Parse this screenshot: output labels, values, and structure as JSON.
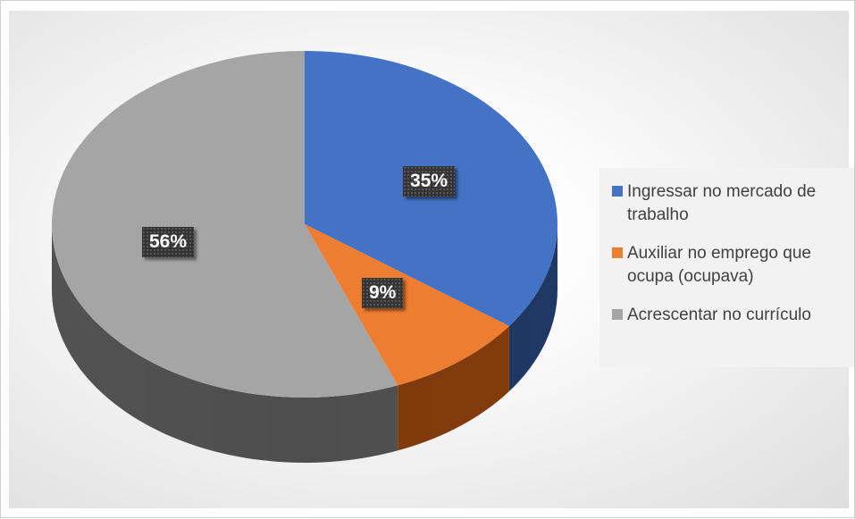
{
  "chart_data": {
    "type": "pie",
    "title": "",
    "categories": [
      "Ingressar no mercado de trabalho",
      "Auxiliar no emprego que ocupa (ocupava)",
      "Acrescentar no currículo"
    ],
    "values": [
      35,
      9,
      56
    ],
    "labels": [
      "35%",
      "9%",
      "56%"
    ],
    "colors": [
      "#4472C4",
      "#ED7D31",
      "#A5A5A5"
    ],
    "side_colors": [
      "#1F3864",
      "#843C0C",
      "#525252"
    ],
    "style": "3d",
    "legend_position": "right"
  }
}
